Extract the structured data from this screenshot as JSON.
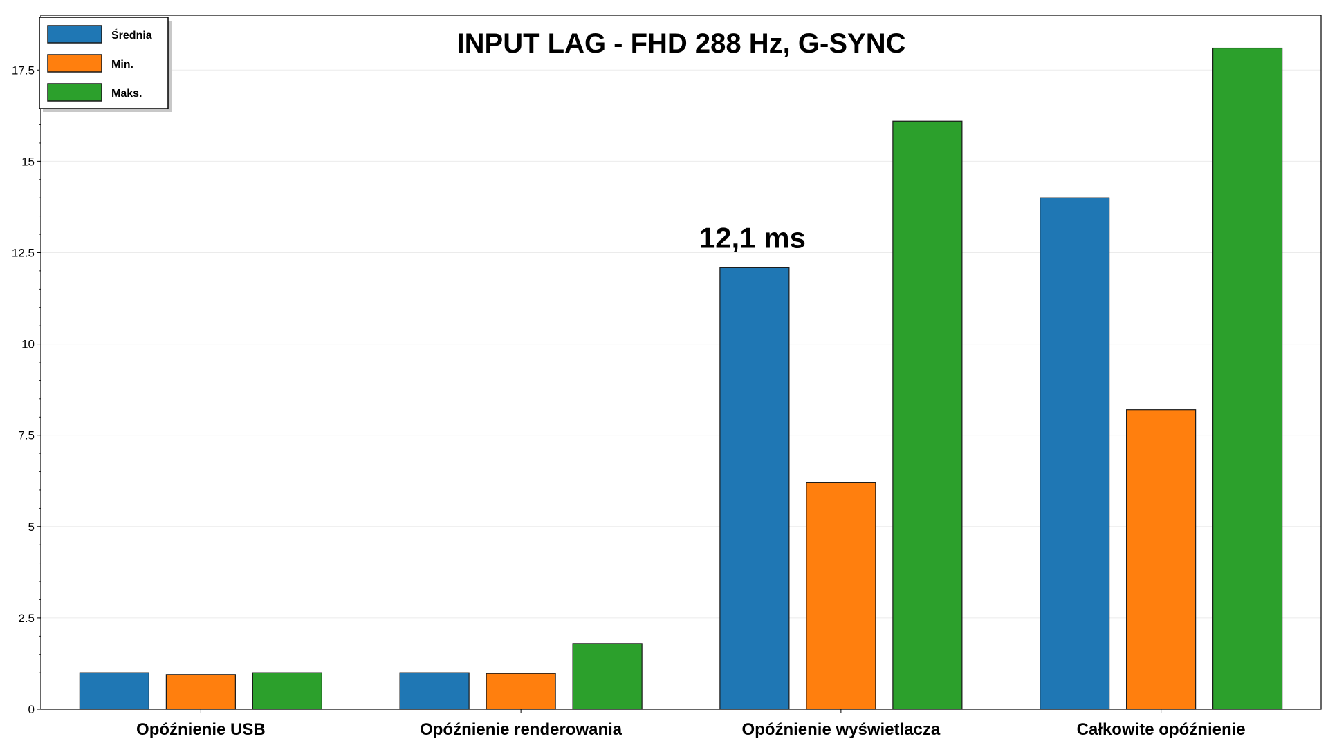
{
  "chart_data": {
    "type": "bar",
    "title": "INPUT LAG - FHD 288 Hz, G-SYNC",
    "categories": [
      "Opóźnienie USB",
      "Opóźnienie renderowania",
      "Opóźnienie wyświetlacza",
      "Całkowite opóźnienie"
    ],
    "series": [
      {
        "name": "Średnia",
        "color": "#1f77b4",
        "values": [
          1.0,
          1.0,
          12.1,
          14.0
        ]
      },
      {
        "name": "Min.",
        "color": "#ff7f0e",
        "values": [
          0.95,
          0.98,
          6.2,
          8.2
        ]
      },
      {
        "name": "Maks.",
        "color": "#2ca02c",
        "values": [
          1.0,
          1.8,
          16.1,
          18.1
        ]
      }
    ],
    "ylim": [
      0,
      19
    ],
    "yticks": [
      0,
      2.5,
      5,
      7.5,
      10,
      12.5,
      15,
      17.5
    ],
    "ytick_labels": [
      "0",
      "2.5",
      "5",
      "7.5",
      "10",
      "12.5",
      "15",
      "17.5"
    ],
    "xlabel": "",
    "ylabel": "",
    "grid": true,
    "legend_position": "top-left",
    "annotation": {
      "text": "12,1 ms",
      "category_index": 2,
      "series_index": 0
    }
  }
}
